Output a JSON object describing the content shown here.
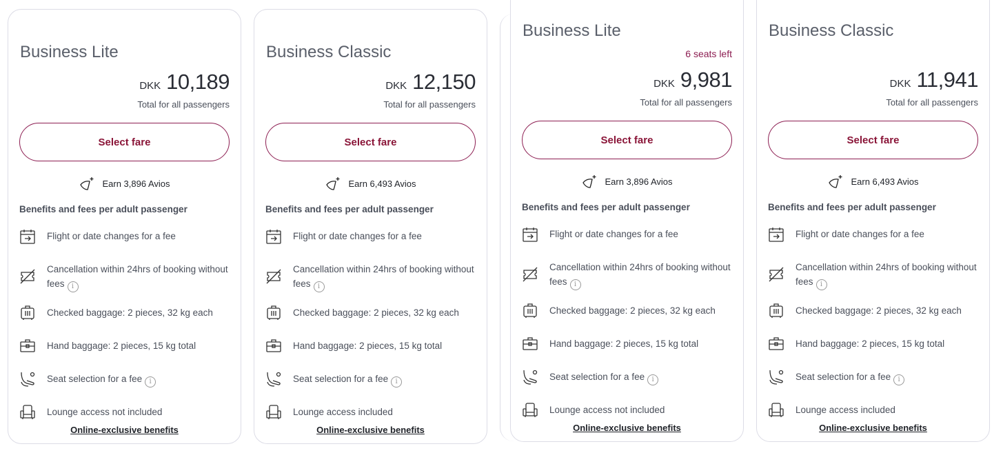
{
  "accent_color": "#8c1d51",
  "cards": [
    {
      "title": "Business Lite",
      "seats_left": "",
      "currency": "DKK",
      "price": "10,189",
      "total_label": "Total for all passengers",
      "select_label": "Select fare",
      "avios": "Earn 3,896 Avios",
      "benefits_heading": "Benefits and fees per adult passenger",
      "benefits": [
        "Flight or date changes for a fee",
        "Cancellation within 24hrs of booking without fees",
        "Checked baggage: 2 pieces, 32 kg each",
        "Hand baggage: 2 pieces, 15 kg total",
        "Seat selection for a fee",
        "Lounge access not included"
      ],
      "link": "Online-exclusive benefits"
    },
    {
      "title": "Business Classic",
      "seats_left": "",
      "currency": "DKK",
      "price": "12,150",
      "total_label": "Total for all passengers",
      "select_label": "Select fare",
      "avios": "Earn 6,493 Avios",
      "benefits_heading": "Benefits and fees per adult passenger",
      "benefits": [
        "Flight or date changes for a fee",
        "Cancellation within 24hrs of booking without fees",
        "Checked baggage: 2 pieces, 32 kg each",
        "Hand baggage: 2 pieces, 15 kg total",
        "Seat selection for a fee",
        "Lounge access included"
      ],
      "link": "Online-exclusive benefits"
    },
    {
      "title": "Business Lite",
      "seats_left": "6 seats left",
      "currency": "DKK",
      "price": "9,981",
      "total_label": "Total for all passengers",
      "select_label": "Select fare",
      "avios": "Earn 3,896 Avios",
      "benefits_heading": "Benefits and fees per adult passenger",
      "benefits": [
        "Flight or date changes for a fee",
        "Cancellation within 24hrs of booking without fees",
        "Checked baggage: 2 pieces, 32 kg each",
        "Hand baggage: 2 pieces, 15 kg total",
        "Seat selection for a fee",
        "Lounge access not included"
      ],
      "link": "Online-exclusive benefits"
    },
    {
      "title": "Business Classic",
      "seats_left": "",
      "currency": "DKK",
      "price": "11,941",
      "total_label": "Total for all passengers",
      "select_label": "Select fare",
      "avios": "Earn 6,493 Avios",
      "benefits_heading": "Benefits and fees per adult passenger",
      "benefits": [
        "Flight or date changes for a fee",
        "Cancellation within 24hrs of booking without fees",
        "Checked baggage: 2 pieces, 32 kg each",
        "Hand baggage: 2 pieces, 15 kg total",
        "Seat selection for a fee",
        "Lounge access included"
      ],
      "link": "Online-exclusive benefits"
    }
  ],
  "benefit_icons": [
    "calendar-arrow-icon",
    "ticket-cancel-icon",
    "checked-bag-icon",
    "hand-bag-icon",
    "seat-icon",
    "lounge-chair-icon"
  ]
}
